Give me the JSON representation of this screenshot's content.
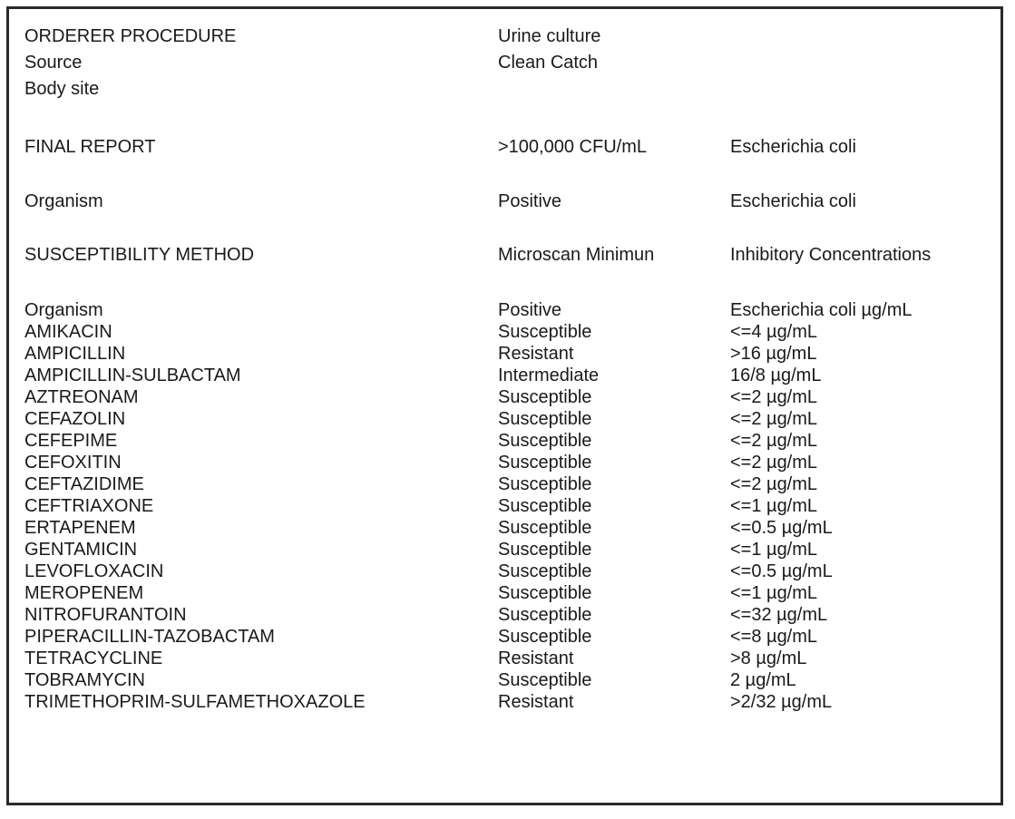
{
  "header": {
    "orderer_procedure": {
      "label": "ORDERER PROCEDURE",
      "value": "Urine culture"
    },
    "source": {
      "label": "Source",
      "value": "Clean Catch"
    },
    "body_site": {
      "label": "Body site",
      "value": ""
    }
  },
  "final_report": {
    "label": "FINAL REPORT",
    "count": ">100,000 CFU/mL",
    "organism": "Escherichia coli"
  },
  "organism_line": {
    "label": "Organism",
    "result": "Positive",
    "organism": "Escherichia coli"
  },
  "susceptibility_method": {
    "label": "SUSCEPTIBILITY METHOD",
    "method": "Microscan Minimun",
    "detail": "Inhibitory Concentrations"
  },
  "table_header": {
    "label": "Organism",
    "result": "Positive",
    "organism": "Escherichia coli µg/mL"
  },
  "antibiotics": [
    {
      "name": "AMIKACIN",
      "result": "Susceptible",
      "mic": "<=4 µg/mL"
    },
    {
      "name": "AMPICILLIN",
      "result": "Resistant",
      "mic": ">16 µg/mL"
    },
    {
      "name": "AMPICILLIN-SULBACTAM",
      "result": "Intermediate",
      "mic": "16/8 µg/mL"
    },
    {
      "name": "AZTREONAM",
      "result": "Susceptible",
      "mic": "<=2 µg/mL"
    },
    {
      "name": "CEFAZOLIN",
      "result": "Susceptible",
      "mic": "<=2 µg/mL"
    },
    {
      "name": "CEFEPIME",
      "result": "Susceptible",
      "mic": "<=2 µg/mL"
    },
    {
      "name": "CEFOXITIN",
      "result": "Susceptible",
      "mic": "<=2 µg/mL"
    },
    {
      "name": "CEFTAZIDIME",
      "result": "Susceptible",
      "mic": "<=2 µg/mL"
    },
    {
      "name": "CEFTRIAXONE",
      "result": "Susceptible",
      "mic": "<=1 µg/mL"
    },
    {
      "name": "ERTAPENEM",
      "result": "Susceptible",
      "mic": "<=0.5 µg/mL"
    },
    {
      "name": "GENTAMICIN",
      "result": "Susceptible",
      "mic": "<=1 µg/mL"
    },
    {
      "name": "LEVOFLOXACIN",
      "result": "Susceptible",
      "mic": "<=0.5 µg/mL"
    },
    {
      "name": "MEROPENEM",
      "result": "Susceptible",
      "mic": "<=1 µg/mL"
    },
    {
      "name": "NITROFURANTOIN",
      "result": "Susceptible",
      "mic": "<=32 µg/mL"
    },
    {
      "name": "PIPERACILLIN-TAZOBACTAM",
      "result": "Susceptible",
      "mic": "<=8 µg/mL"
    },
    {
      "name": "TETRACYCLINE",
      "result": "Resistant",
      "mic": ">8 µg/mL"
    },
    {
      "name": "TOBRAMYCIN",
      "result": "Susceptible",
      "mic": "2 µg/mL"
    },
    {
      "name": "TRIMETHOPRIM-SULFAMETHOXAZOLE",
      "result": "Resistant",
      "mic": ">2/32 µg/mL"
    }
  ]
}
